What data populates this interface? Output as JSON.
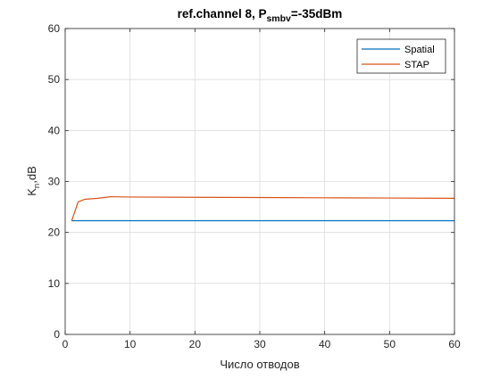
{
  "chart_data": {
    "type": "line",
    "title_parts": {
      "prefix": "ref.channel 8, P",
      "subscript": "smbv",
      "suffix": "=-35dBm"
    },
    "xlabel": "Число отводов",
    "ylabel_parts": {
      "main": "K",
      "subscript": "n",
      "suffix": ",dB"
    },
    "xlim": [
      0,
      60
    ],
    "ylim": [
      0,
      60
    ],
    "xticks": [
      0,
      10,
      20,
      30,
      40,
      50,
      60
    ],
    "yticks": [
      0,
      10,
      20,
      30,
      40,
      50,
      60
    ],
    "grid": true,
    "legend_position": "top-right",
    "series": [
      {
        "name": "Spatial",
        "color": "#0072BD",
        "x": [
          1,
          60
        ],
        "y": [
          22.3,
          22.3
        ]
      },
      {
        "name": "STAP",
        "color": "#D95319",
        "x": [
          1,
          2,
          3,
          5,
          7,
          10,
          20,
          30,
          40,
          50,
          60
        ],
        "y": [
          22.3,
          26.0,
          26.5,
          26.7,
          27.0,
          26.95,
          26.9,
          26.85,
          26.8,
          26.75,
          26.7
        ]
      }
    ]
  }
}
